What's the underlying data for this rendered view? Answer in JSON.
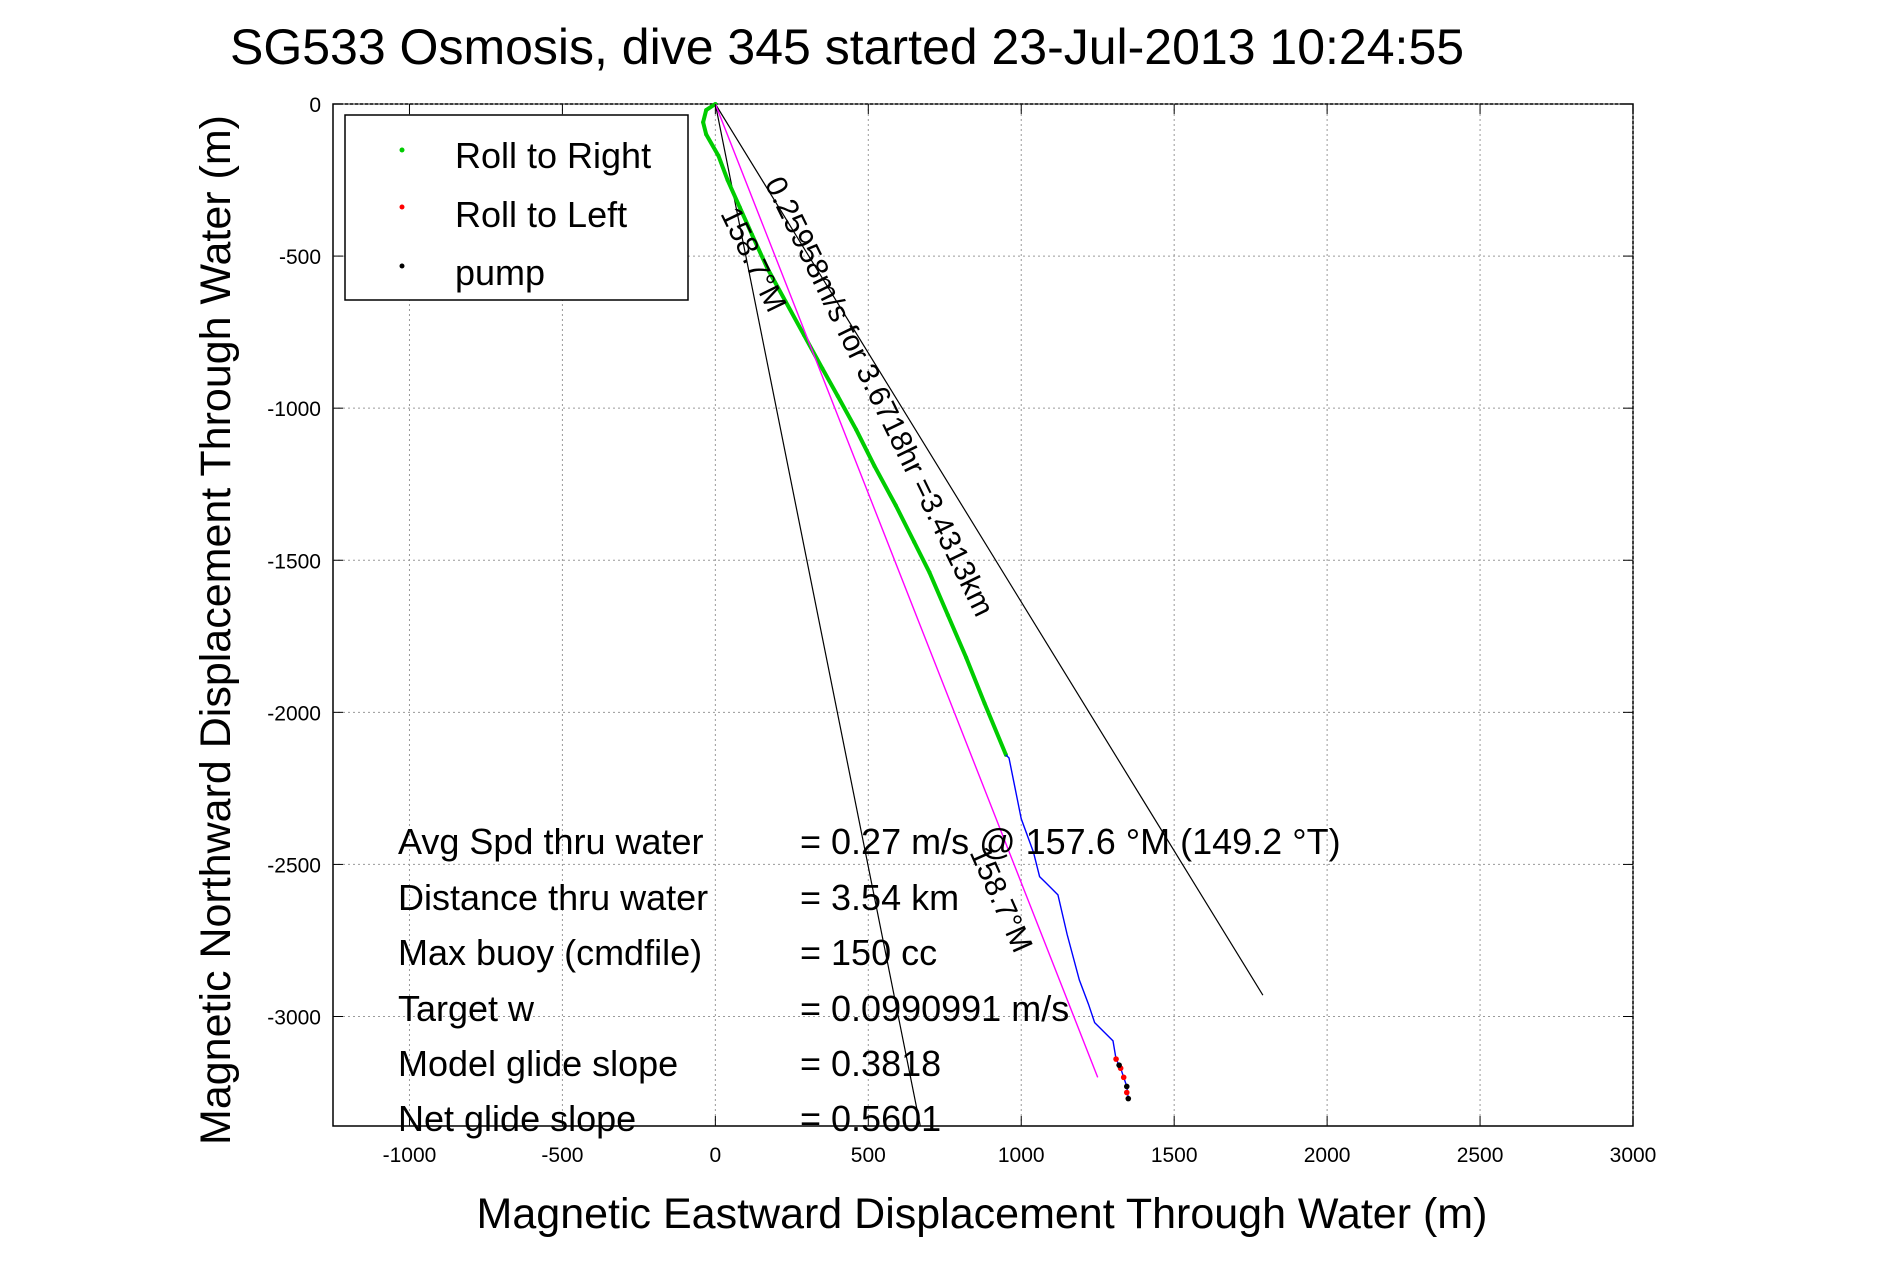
{
  "chart_data": {
    "type": "line",
    "title": "SG533 Osmosis, dive 345 started 23-Jul-2013 10:24:55",
    "xlabel": "Magnetic Eastward Displacement Through Water (m)",
    "ylabel": "Magnetic Northward Displacement Through Water (m)",
    "xlim": [
      -1250,
      3000
    ],
    "ylim": [
      -3360,
      0
    ],
    "xticks": [
      -1000,
      -500,
      0,
      500,
      1000,
      1500,
      2000,
      2500,
      3000
    ],
    "yticks": [
      0,
      -500,
      -1000,
      -1500,
      -2000,
      -2500,
      -3000
    ],
    "xtick_labels": [
      "-1000",
      "-500",
      "0",
      "500",
      "1000",
      "1500",
      "2000",
      "2500",
      "3000"
    ],
    "ytick_labels": [
      "0",
      "-500",
      "-1000",
      "-1500",
      "-2000",
      "-2500",
      "-3000"
    ],
    "grid": true,
    "legend": {
      "placement": "top-left",
      "entries": [
        {
          "label": "Roll to Right",
          "color": "#00cc00"
        },
        {
          "label": "Roll to Left",
          "color": "#ff0000"
        },
        {
          "label": "pump",
          "color": "#000000"
        }
      ]
    },
    "series": [
      {
        "name": "Roll to Right",
        "color": "#00cc00",
        "style": "track",
        "x": [
          0,
          -30,
          -40,
          -30,
          10,
          40,
          80,
          120,
          170,
          230,
          290,
          350,
          400,
          460,
          520,
          590,
          650,
          700,
          760,
          820,
          880,
          950
        ],
        "y": [
          0,
          -20,
          -60,
          -100,
          -170,
          -250,
          -340,
          -430,
          -540,
          -650,
          -760,
          -870,
          -960,
          -1070,
          -1190,
          -1320,
          -1440,
          -1540,
          -1680,
          -1820,
          -1970,
          -2140
        ]
      },
      {
        "name": "",
        "color": "#0000ff",
        "style": "line",
        "x": [
          950,
          960,
          1000,
          1040,
          1060,
          1080,
          1120,
          1150,
          1190,
          1220,
          1240,
          1270,
          1300,
          1310,
          1325,
          1335,
          1345,
          1350
        ],
        "y": [
          -2140,
          -2150,
          -2350,
          -2460,
          -2540,
          -2560,
          -2600,
          -2730,
          -2880,
          -2960,
          -3020,
          -3050,
          -3080,
          -3140,
          -3170,
          -3200,
          -3230,
          -3270
        ]
      },
      {
        "name": "Roll to Left",
        "color": "#ff0000",
        "style": "points",
        "x": [
          1310,
          1325,
          1335,
          1345
        ],
        "y": [
          -3140,
          -3170,
          -3200,
          -3250
        ]
      },
      {
        "name": "pump",
        "color": "#000000",
        "style": "points",
        "x": [
          1345,
          1350,
          1320
        ],
        "y": [
          -3230,
          -3270,
          -3160
        ]
      },
      {
        "name": "",
        "color": "#ff00ff",
        "style": "line",
        "x": [
          0,
          1250
        ],
        "y": [
          0,
          -3200
        ]
      }
    ],
    "reference_lines": [
      {
        "color": "#000000",
        "x": [
          0,
          1790
        ],
        "y": [
          0,
          -2930
        ]
      },
      {
        "color": "#000000",
        "x": [
          0,
          670
        ],
        "y": [
          0,
          -3360
        ]
      }
    ],
    "annotations": [
      {
        "text": "0.25958m/s for 3.6718hr =3.4313km",
        "x": 160,
        "y": -260,
        "angle": 64
      },
      {
        "text": "158.7°M",
        "x": 15,
        "y": -360,
        "angle": 64
      },
      {
        "text": "158.7°M",
        "x": 830,
        "y": -2460,
        "angle": 66
      }
    ]
  },
  "legend_labels": {
    "right": "Roll to Right",
    "left": "Roll to Left",
    "pump": "pump"
  },
  "stats": [
    {
      "label": "Avg Spd thru water",
      "value": "=  0.27 m/s @ 157.6 °M (149.2 °T)"
    },
    {
      "label": "Distance thru water",
      "value": "=  3.54 km"
    },
    {
      "label": "Max buoy (cmdfile)",
      "value": "= 150 cc"
    },
    {
      "label": "Target w",
      "value": "= 0.0990991 m/s"
    },
    {
      "label": "Model glide slope",
      "value": "= 0.3818"
    },
    {
      "label": "Net glide slope",
      "value": "= 0.5601"
    }
  ]
}
